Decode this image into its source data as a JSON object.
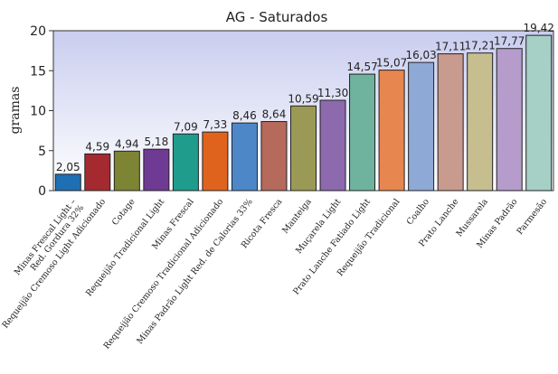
{
  "chart_data": {
    "type": "bar",
    "title": "AG - Saturados",
    "xlabel": "",
    "ylabel": "gramas",
    "ylim": [
      0,
      20
    ],
    "yticks": [
      0,
      5,
      10,
      15,
      20
    ],
    "grid": false,
    "background": "gradient lavender",
    "categories": [
      [
        "Minas Frescal Light –",
        "Red. Gordura 32%"
      ],
      [
        "Requeijão Cremoso Light Adicionado"
      ],
      [
        "Cotage"
      ],
      [
        "Requeijão Tradicional Light"
      ],
      [
        "Minas Frescal"
      ],
      [
        "Requeijão Cremoso Tradicional Adicionado"
      ],
      [
        "Minas Padrão Light Red. de Calorias 33%"
      ],
      [
        "Ricota Fresca"
      ],
      [
        "Manteiga"
      ],
      [
        "Muçarela Light"
      ],
      [
        "Prato Lanche Fatiado Light"
      ],
      [
        "Requeijão Tradicional"
      ],
      [
        "Coalho"
      ],
      [
        "Prato Lanche"
      ],
      [
        "Mussarela"
      ],
      [
        "Minas Padrão"
      ],
      [
        "Parmesão"
      ]
    ],
    "values": [
      2.05,
      4.59,
      4.94,
      5.18,
      7.09,
      7.33,
      8.46,
      8.64,
      10.59,
      11.3,
      14.57,
      15.07,
      16.03,
      17.11,
      17.21,
      17.77,
      19.42
    ],
    "value_labels": [
      "2,05",
      "4,59",
      "4,94",
      "5,18",
      "7,09",
      "7,33",
      "8,46",
      "8,64",
      "10,59",
      "11,30",
      "14,57",
      "15,07",
      "16,03",
      "17,11",
      "17,21",
      "17,77",
      "19,42"
    ],
    "colors": [
      "#1f6fb5",
      "#a52a2f",
      "#7d8433",
      "#6f3a93",
      "#1f9c8c",
      "#e0631d",
      "#4d87c8",
      "#b56a5b",
      "#9a9a56",
      "#8c6aad",
      "#6fb39e",
      "#e8864f",
      "#8fa9d6",
      "#c99a8e",
      "#c6be8f",
      "#b59ccb",
      "#a6cfc5"
    ]
  }
}
